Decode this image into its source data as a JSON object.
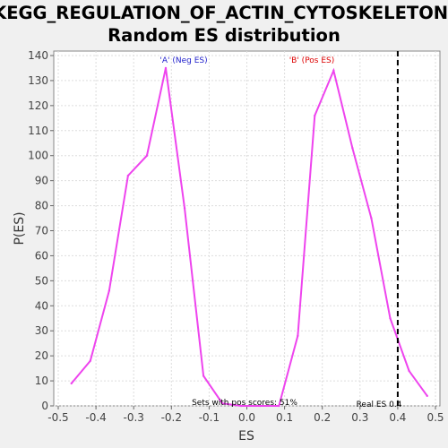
{
  "chart_data": {
    "type": "line",
    "title_line1": "KEGG_REGULATION_OF_ACTIN_CYTOSKELETON:",
    "title_line2": "Random ES distribution",
    "xlabel": "ES",
    "ylabel": "P(ES)",
    "xlim": [
      -0.5,
      0.5
    ],
    "ylim": [
      0,
      140
    ],
    "xticks": [
      -0.5,
      -0.4,
      -0.3,
      -0.2,
      -0.1,
      0.0,
      0.1,
      0.2,
      0.3,
      0.4,
      0.5
    ],
    "xtick_labels": [
      "-0.5",
      "-0.4",
      "-0.3",
      "-0.2",
      "-0.1",
      "0.0",
      "0.1",
      "0.2",
      "0.3",
      "0.4",
      "0.5"
    ],
    "yticks": [
      0,
      10,
      20,
      30,
      40,
      50,
      60,
      70,
      80,
      90,
      100,
      110,
      120,
      130,
      140
    ],
    "ytick_labels": [
      "0",
      "10",
      "20",
      "30",
      "40",
      "50",
      "60",
      "70",
      "80",
      "90",
      "100",
      "110",
      "120",
      "130",
      "140"
    ],
    "grid": true,
    "series": [
      {
        "color": "#ee44ee",
        "x": [
          -0.465,
          -0.415,
          -0.365,
          -0.315,
          -0.265,
          -0.215,
          -0.165,
          -0.115,
          -0.065,
          -0.015,
          0.035,
          0.085,
          0.135,
          0.18,
          0.23,
          0.28,
          0.33,
          0.38,
          0.43,
          0.478
        ],
        "y": [
          9,
          18,
          46,
          92,
          100,
          135,
          79,
          12,
          1,
          0,
          0,
          0,
          28,
          116,
          134,
          103,
          75,
          35,
          14,
          4
        ]
      }
    ],
    "real_es": 0.4,
    "real_es_color": "#000000",
    "annotations": {
      "neg_label": "'A' (Neg ES)",
      "neg_color": "#2222cc",
      "pos_label": "'B' (Pos ES)",
      "pos_color": "#dd0000",
      "pos_scores": "Sets with pos scores: 51%",
      "real_es_label": "Real ES 0.4"
    }
  }
}
